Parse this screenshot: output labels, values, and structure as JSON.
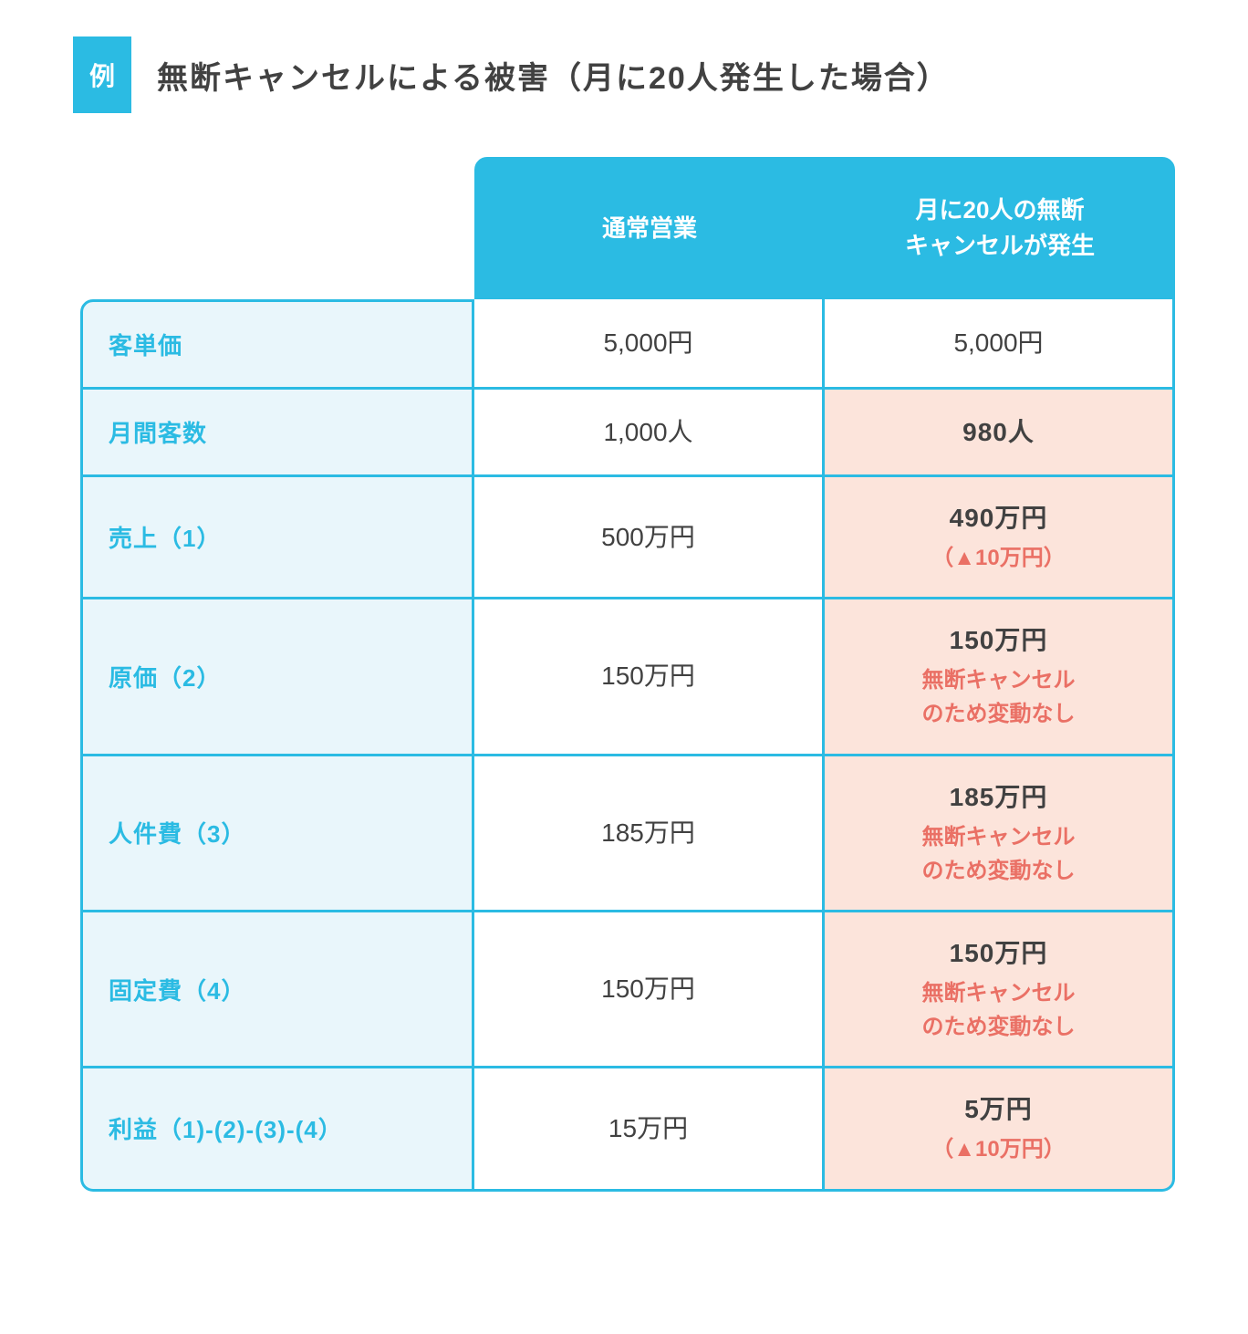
{
  "colors": {
    "brand": "#2bbbe3",
    "label_bg": "#e9f6fb",
    "highlight_bg": "#fce4db",
    "accent_text": "#ea7065",
    "body_text": "#414141",
    "white": "#ffffff"
  },
  "header": {
    "badge": "例",
    "title": "無断キャンセルによる被害（月に20人発生した場合）"
  },
  "table": {
    "type": "table",
    "col_header_1": "通常営業",
    "col_header_2": "月に20人の無断\nキャンセルが発生",
    "rows": [
      {
        "label": "客単価",
        "c1": "5,000円",
        "c2_main": "5,000円",
        "c2_sub": "",
        "hl": false,
        "bold": false
      },
      {
        "label": "月間客数",
        "c1": "1,000人",
        "c2_main": "980人",
        "c2_sub": "",
        "hl": true,
        "bold": true
      },
      {
        "label": "売上（1）",
        "c1": "500万円",
        "c2_main": "490万円",
        "c2_sub": "（▲10万円）",
        "hl": true,
        "bold": true
      },
      {
        "label": "原価（2）",
        "c1": "150万円",
        "c2_main": "150万円",
        "c2_sub": "無断キャンセル\nのため変動なし",
        "hl": true,
        "bold": true
      },
      {
        "label": "人件費（3）",
        "c1": "185万円",
        "c2_main": "185万円",
        "c2_sub": "無断キャンセル\nのため変動なし",
        "hl": true,
        "bold": true
      },
      {
        "label": "固定費（4）",
        "c1": "150万円",
        "c2_main": "150万円",
        "c2_sub": "無断キャンセル\nのため変動なし",
        "hl": true,
        "bold": true
      },
      {
        "label": "利益（1)-(2)-(3)-(4）",
        "c1": "15万円",
        "c2_main": "5万円",
        "c2_sub": "（▲10万円）",
        "hl": true,
        "bold": true
      }
    ]
  }
}
